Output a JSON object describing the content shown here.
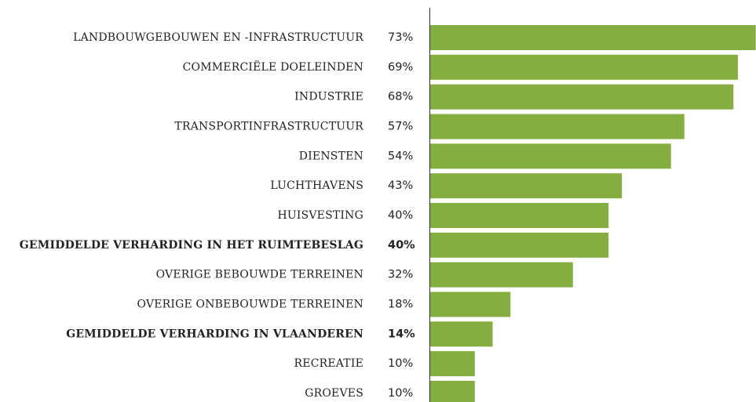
{
  "chart_data": {
    "type": "barh",
    "categories": [
      "LANDBOUWGEBOUWEN EN -INFRASTRUCTUUR",
      "COMMERCIËLE DOELEINDEN",
      "INDUSTRIE",
      "TRANSPORTINFRASTRUCTUUR",
      "DIENSTEN",
      "LUCHTHAVENS",
      "HUISVESTING",
      "GEMIDDELDE VERHARDING IN HET RUIMTEBESLAG",
      "OVERIGE BEBOUWDE TERREINEN",
      "OVERIGE ONBEBOUWDE TERREINEN",
      "GEMIDDELDE VERHARDING IN VLAANDEREN",
      "RECREATIE",
      "GROEVES"
    ],
    "values": [
      73,
      69,
      68,
      57,
      54,
      43,
      40,
      40,
      32,
      18,
      14,
      10,
      10
    ],
    "value_labels": [
      "73%",
      "69%",
      "68%",
      "57%",
      "54%",
      "43%",
      "40%",
      "40%",
      "32%",
      "18%",
      "14%",
      "10%",
      "10%"
    ],
    "emphasis": [
      false,
      false,
      false,
      false,
      false,
      false,
      false,
      true,
      false,
      false,
      true,
      false,
      false
    ],
    "color": "#84ae3f"
  }
}
